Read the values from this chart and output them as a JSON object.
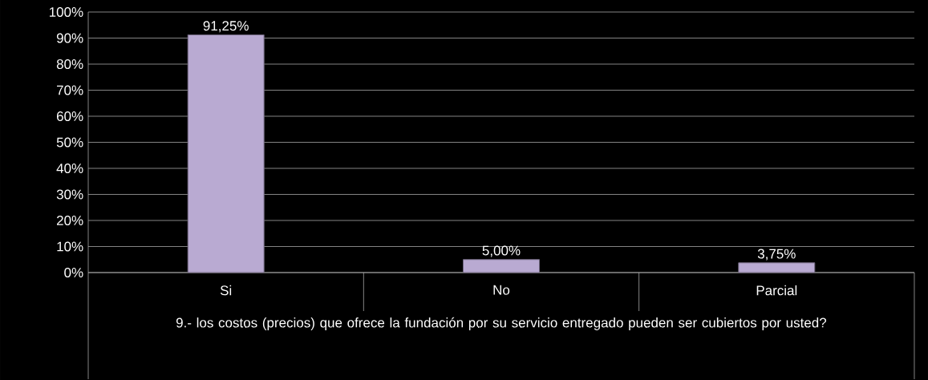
{
  "chart_data": {
    "type": "bar",
    "categories": [
      "Si",
      "No",
      "Parcial"
    ],
    "values": [
      91.25,
      5.0,
      3.75
    ],
    "value_labels": [
      "91,25%",
      "5,00%",
      "3,75%"
    ],
    "color": "#b9aad2",
    "xlabel": "9.- los costos (precios) que ofrece la fundación por su servicio entregado pueden ser cubiertos por usted?",
    "ylim": [
      0,
      100
    ],
    "yticks": [
      {
        "value": 0,
        "label": "0%"
      },
      {
        "value": 10,
        "label": "10%"
      },
      {
        "value": 20,
        "label": "20%"
      },
      {
        "value": 30,
        "label": "30%"
      },
      {
        "value": 40,
        "label": "40%"
      },
      {
        "value": 50,
        "label": "50%"
      },
      {
        "value": 60,
        "label": "60%"
      },
      {
        "value": 70,
        "label": "70%"
      },
      {
        "value": 80,
        "label": "80%"
      },
      {
        "value": 90,
        "label": "90%"
      },
      {
        "value": 100,
        "label": "100%"
      }
    ],
    "grid": "y"
  }
}
